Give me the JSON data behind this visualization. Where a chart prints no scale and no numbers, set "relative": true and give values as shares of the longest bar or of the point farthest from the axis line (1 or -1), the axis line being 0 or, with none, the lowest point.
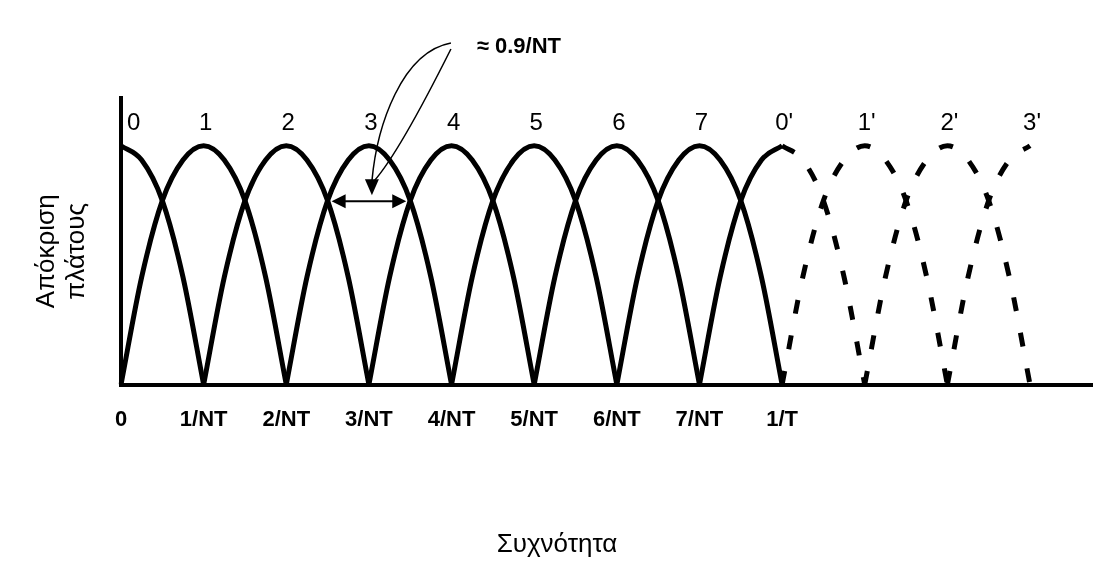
{
  "chart_data": {
    "type": "line",
    "relative": true,
    "xlabel": "Συχνότητα",
    "ylabel": "Απόκριση πλάτους",
    "categories": [
      "0",
      null,
      null,
      null,
      "1/NT",
      null,
      null,
      null,
      "2/NT",
      null,
      null,
      null,
      "3/NT",
      null,
      null,
      null,
      "4/NT",
      null,
      null,
      null,
      "5/NT",
      null,
      null,
      null,
      "6/NT",
      null,
      null,
      null,
      "7/NT",
      null,
      null,
      null,
      "1/T",
      null,
      null,
      null,
      null,
      null,
      null,
      null,
      null,
      null,
      null,
      null,
      null,
      null,
      null,
      null
    ],
    "annotations": [
      "≈ 0.9/NT"
    ],
    "series": [
      {
        "name": "0",
        "color": "#000000",
        "values": [
          1,
          0.94,
          0.77,
          0.45,
          0,
          null,
          null,
          null,
          null,
          null,
          null,
          null,
          null,
          null,
          null,
          null,
          null,
          null,
          null,
          null,
          null,
          null,
          null,
          null,
          null,
          null,
          null,
          null,
          null,
          null,
          null,
          null,
          null,
          null,
          null,
          null,
          null,
          null,
          null,
          null,
          null,
          null,
          null,
          null,
          null,
          null,
          null,
          null
        ]
      },
      {
        "name": "1",
        "color": "#000000",
        "values": [
          0,
          0.45,
          0.77,
          0.94,
          1,
          0.94,
          0.77,
          0.45,
          0,
          null,
          null,
          null,
          null,
          null,
          null,
          null,
          null,
          null,
          null,
          null,
          null,
          null,
          null,
          null,
          null,
          null,
          null,
          null,
          null,
          null,
          null,
          null,
          null,
          null,
          null,
          null,
          null,
          null,
          null,
          null,
          null,
          null,
          null,
          null,
          null,
          null,
          null,
          null
        ]
      },
      {
        "name": "2",
        "color": "#000000",
        "values": [
          null,
          null,
          null,
          null,
          0,
          0.45,
          0.77,
          0.94,
          1,
          0.94,
          0.77,
          0.45,
          0,
          null,
          null,
          null,
          null,
          null,
          null,
          null,
          null,
          null,
          null,
          null,
          null,
          null,
          null,
          null,
          null,
          null,
          null,
          null,
          null,
          null,
          null,
          null,
          null,
          null,
          null,
          null,
          null,
          null,
          null,
          null,
          null,
          null,
          null,
          null
        ]
      },
      {
        "name": "3",
        "color": "#000000",
        "values": [
          null,
          null,
          null,
          null,
          null,
          null,
          null,
          null,
          0,
          0.45,
          0.77,
          0.94,
          1,
          0.94,
          0.77,
          0.45,
          0,
          null,
          null,
          null,
          null,
          null,
          null,
          null,
          null,
          null,
          null,
          null,
          null,
          null,
          null,
          null,
          null,
          null,
          null,
          null,
          null,
          null,
          null,
          null,
          null,
          null,
          null,
          null,
          null,
          null,
          null,
          null
        ]
      },
      {
        "name": "4",
        "color": "#000000",
        "values": [
          null,
          null,
          null,
          null,
          null,
          null,
          null,
          null,
          null,
          null,
          null,
          null,
          0,
          0.45,
          0.77,
          0.94,
          1,
          0.94,
          0.77,
          0.45,
          0,
          null,
          null,
          null,
          null,
          null,
          null,
          null,
          null,
          null,
          null,
          null,
          null,
          null,
          null,
          null,
          null,
          null,
          null,
          null,
          null,
          null,
          null,
          null,
          null,
          null,
          null,
          null
        ]
      },
      {
        "name": "5",
        "color": "#000000",
        "values": [
          null,
          null,
          null,
          null,
          null,
          null,
          null,
          null,
          null,
          null,
          null,
          null,
          null,
          null,
          null,
          null,
          0,
          0.45,
          0.77,
          0.94,
          1,
          0.94,
          0.77,
          0.45,
          0,
          null,
          null,
          null,
          null,
          null,
          null,
          null,
          null,
          null,
          null,
          null,
          null,
          null,
          null,
          null,
          null,
          null,
          null,
          null,
          null,
          null,
          null,
          null
        ]
      },
      {
        "name": "6",
        "color": "#000000",
        "values": [
          null,
          null,
          null,
          null,
          null,
          null,
          null,
          null,
          null,
          null,
          null,
          null,
          null,
          null,
          null,
          null,
          null,
          null,
          null,
          null,
          0,
          0.45,
          0.77,
          0.94,
          1,
          0.94,
          0.77,
          0.45,
          0,
          null,
          null,
          null,
          null,
          null,
          null,
          null,
          null,
          null,
          null,
          null,
          null,
          null,
          null,
          null,
          null,
          null,
          null,
          null
        ]
      },
      {
        "name": "7",
        "color": "#000000",
        "values": [
          null,
          null,
          null,
          null,
          null,
          null,
          null,
          null,
          null,
          null,
          null,
          null,
          null,
          null,
          null,
          null,
          null,
          null,
          null,
          null,
          null,
          null,
          null,
          null,
          0,
          0.45,
          0.77,
          0.94,
          1,
          0.94,
          0.77,
          0.45,
          0,
          null,
          null,
          null,
          null,
          null,
          null,
          null,
          null,
          null,
          null,
          null,
          null,
          null,
          null,
          null
        ]
      },
      {
        "name": "0'",
        "color": "#000000",
        "values": [
          null,
          null,
          null,
          null,
          null,
          null,
          null,
          null,
          null,
          null,
          null,
          null,
          null,
          null,
          null,
          null,
          null,
          null,
          null,
          null,
          null,
          null,
          null,
          null,
          null,
          null,
          null,
          null,
          0,
          0.45,
          0.77,
          0.94,
          1,
          null,
          null,
          null,
          null,
          null,
          null,
          null,
          null,
          null,
          null,
          null,
          null,
          null,
          null,
          null
        ]
      },
      {
        "color": "#000000",
        "line_style": "dashed",
        "values": [
          null,
          null,
          null,
          null,
          null,
          null,
          null,
          null,
          null,
          null,
          null,
          null,
          null,
          null,
          null,
          null,
          null,
          null,
          null,
          null,
          null,
          null,
          null,
          null,
          null,
          null,
          null,
          null,
          null,
          null,
          null,
          null,
          1,
          0.94,
          0.77,
          0.45,
          0,
          null,
          null,
          null,
          null,
          null,
          null,
          null,
          null,
          null,
          null,
          null
        ]
      },
      {
        "name": "1'",
        "color": "#000000",
        "line_style": "dashed",
        "values": [
          null,
          null,
          null,
          null,
          null,
          null,
          null,
          null,
          null,
          null,
          null,
          null,
          null,
          null,
          null,
          null,
          null,
          null,
          null,
          null,
          null,
          null,
          null,
          null,
          null,
          null,
          null,
          null,
          null,
          null,
          null,
          null,
          0,
          0.45,
          0.77,
          0.94,
          1,
          0.94,
          0.77,
          0.45,
          0,
          null,
          null,
          null,
          null,
          null,
          null,
          null
        ]
      },
      {
        "name": "2'",
        "color": "#000000",
        "line_style": "dashed",
        "values": [
          null,
          null,
          null,
          null,
          null,
          null,
          null,
          null,
          null,
          null,
          null,
          null,
          null,
          null,
          null,
          null,
          null,
          null,
          null,
          null,
          null,
          null,
          null,
          null,
          null,
          null,
          null,
          null,
          null,
          null,
          null,
          null,
          null,
          null,
          null,
          null,
          0,
          0.45,
          0.77,
          0.94,
          1,
          0.94,
          0.77,
          0.45,
          0,
          null,
          null,
          null
        ]
      },
      {
        "name": "3'",
        "color": "#000000",
        "line_style": "dashed",
        "values": [
          null,
          null,
          null,
          null,
          null,
          null,
          null,
          null,
          null,
          null,
          null,
          null,
          null,
          null,
          null,
          null,
          null,
          null,
          null,
          null,
          null,
          null,
          null,
          null,
          null,
          null,
          null,
          null,
          null,
          null,
          null,
          null,
          null,
          null,
          null,
          null,
          null,
          null,
          null,
          null,
          0,
          0.45,
          0.77,
          0.94,
          1,
          null,
          null,
          null
        ]
      }
    ]
  }
}
